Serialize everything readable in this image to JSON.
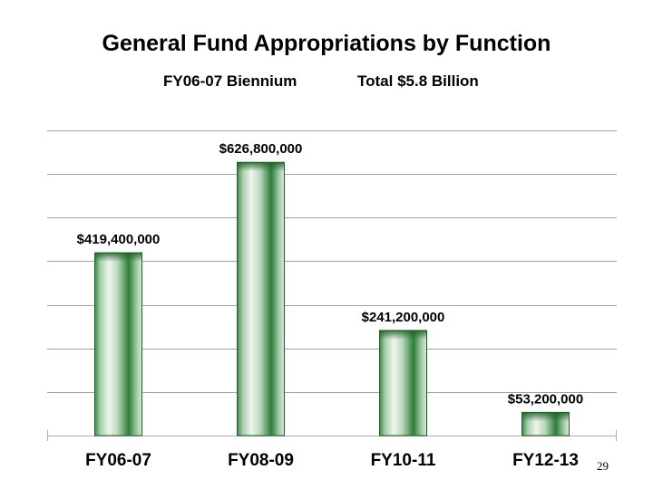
{
  "title": "General Fund Appropriations by Function",
  "subtitle_left": "FY06-07 Biennium",
  "subtitle_right": "Total $5.8 Billion",
  "page_number": "29",
  "colors": {
    "bar_dark": "#2e7d3a",
    "bar_light": "#eef5ee",
    "grid": "#a0a0a0"
  },
  "chart_data": {
    "type": "bar",
    "categories": [
      "FY06-07",
      "FY08-09",
      "FY10-11",
      "FY12-13"
    ],
    "values": [
      419400000,
      626800000,
      241200000,
      53200000
    ],
    "data_labels": [
      "$419,400,000",
      "$626,800,000",
      "$241,200,000",
      "$53,200,000"
    ],
    "ylim": [
      0,
      700000000
    ],
    "grid": true,
    "legend": "none"
  }
}
